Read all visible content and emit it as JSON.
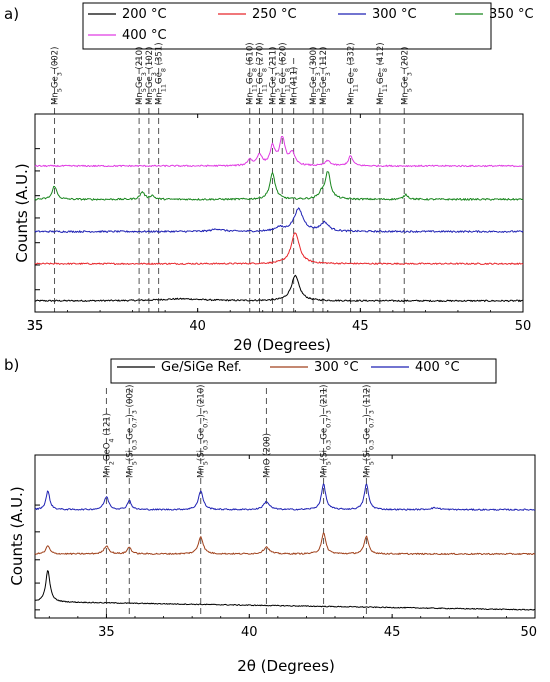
{
  "chart_data": [
    {
      "panel": "a)",
      "type": "line",
      "xlabel": "2θ (Degrees)",
      "ylabel": "Counts (A.U.)",
      "xlim": [
        35,
        50
      ],
      "xticks": [
        35,
        40,
        45,
        50
      ],
      "ylim": [
        0,
        10
      ],
      "legend": "top",
      "series": [
        {
          "name": "200 °C",
          "color": "#000000",
          "baseline": 0.45,
          "noise": 0.03,
          "peaks": [
            [
              43.0,
              1.0,
              0.15
            ],
            [
              39.5,
              0.08,
              0.8
            ]
          ]
        },
        {
          "name": "250 °C",
          "color": "#e8262b",
          "baseline": 1.95,
          "noise": 0.03,
          "peaks": [
            [
              43.0,
              1.25,
              0.15
            ]
          ]
        },
        {
          "name": "300 °C",
          "color": "#1f22b4",
          "baseline": 3.25,
          "noise": 0.035,
          "peaks": [
            [
              43.1,
              0.9,
              0.17
            ],
            [
              43.9,
              0.35,
              0.15
            ],
            [
              42.5,
              0.15,
              0.15
            ],
            [
              40.6,
              0.1,
              0.2
            ]
          ]
        },
        {
          "name": "350 °C",
          "color": "#19861e",
          "baseline": 4.55,
          "noise": 0.035,
          "peaks": [
            [
              35.6,
              0.55,
              0.08
            ],
            [
              38.3,
              0.3,
              0.08
            ],
            [
              38.6,
              0.15,
              0.08
            ],
            [
              42.3,
              1.05,
              0.1
            ],
            [
              43.8,
              0.2,
              0.1
            ],
            [
              44.0,
              1.1,
              0.1
            ],
            [
              46.4,
              0.2,
              0.08
            ]
          ]
        },
        {
          "name": "400 °C",
          "color": "#e03ce3",
          "baseline": 5.9,
          "noise": 0.03,
          "peaks": [
            [
              41.6,
              0.25,
              0.08
            ],
            [
              41.9,
              0.45,
              0.09
            ],
            [
              42.3,
              0.75,
              0.09
            ],
            [
              42.6,
              1.1,
              0.1
            ],
            [
              42.9,
              0.5,
              0.1
            ],
            [
              44.0,
              0.2,
              0.1
            ],
            [
              44.7,
              0.4,
              0.08
            ]
          ]
        }
      ],
      "reference_lines": [
        {
          "x": 35.6,
          "label": "Mn5Ge3 (002)"
        },
        {
          "x": 38.2,
          "label": "Mn5Ge3 (210)"
        },
        {
          "x": 38.5,
          "label": "Mn5Ge3 (102)"
        },
        {
          "x": 38.8,
          "label": "Mn11Ge8 (351)"
        },
        {
          "x": 41.6,
          "label": "Mn11Ge8 (610)"
        },
        {
          "x": 41.9,
          "label": "Mn11Ge8 (270)"
        },
        {
          "x": 42.3,
          "label": "Mn5Ge3 (211)"
        },
        {
          "x": 42.6,
          "label": "Mn11Ge8 (620)"
        },
        {
          "x": 42.95,
          "label": "Mn (411)"
        },
        {
          "x": 43.55,
          "label": "Mn5Ge3 (300)"
        },
        {
          "x": 43.85,
          "label": "Mn5Ge3 (112)"
        },
        {
          "x": 44.7,
          "label": "Mn11Ge8 (332)"
        },
        {
          "x": 45.6,
          "label": "Mn11Ge8 (412)"
        },
        {
          "x": 46.35,
          "label": "Mn5Ge3 (202)"
        }
      ]
    },
    {
      "panel": "b)",
      "type": "line",
      "xlabel": "2θ (Degrees)",
      "ylabel": "Counts (A.U.)",
      "xlim": [
        32.5,
        50
      ],
      "xticks": [
        35,
        40,
        45,
        50
      ],
      "ylim": [
        0,
        10
      ],
      "legend": "top",
      "series": [
        {
          "name": "Ge/SiGe Ref.",
          "color": "#000000",
          "baseline": 0.7,
          "slope": -0.35,
          "noise": 0.02,
          "peaks": [
            [
              32.95,
              1.35,
              0.09
            ]
          ]
        },
        {
          "name": "300 °C",
          "color": "#a0421c",
          "baseline": 2.75,
          "noise": 0.03,
          "peaks": [
            [
              32.95,
              0.35,
              0.08
            ],
            [
              35.0,
              0.35,
              0.1
            ],
            [
              35.8,
              0.3,
              0.08
            ],
            [
              38.3,
              0.75,
              0.1
            ],
            [
              40.6,
              0.3,
              0.12
            ],
            [
              42.6,
              0.9,
              0.09
            ],
            [
              44.1,
              0.75,
              0.09
            ]
          ]
        },
        {
          "name": "400 °C",
          "color": "#1f22b4",
          "baseline": 4.65,
          "noise": 0.03,
          "peaks": [
            [
              32.95,
              0.8,
              0.08
            ],
            [
              35.0,
              0.55,
              0.1
            ],
            [
              35.8,
              0.4,
              0.08
            ],
            [
              38.3,
              0.8,
              0.1
            ],
            [
              40.6,
              0.35,
              0.12
            ],
            [
              42.6,
              1.1,
              0.09
            ],
            [
              44.1,
              1.1,
              0.09
            ],
            [
              46.5,
              0.08,
              0.2
            ]
          ]
        }
      ],
      "reference_lines": [
        {
          "x": 35.0,
          "label": "Mn2GeO4 (121)"
        },
        {
          "x": 35.8,
          "label": "Mn5(Si0.3Ge0.7)3 (002)"
        },
        {
          "x": 38.3,
          "label": "Mn5(Si0.3Ge0.7)3 (210)"
        },
        {
          "x": 40.6,
          "label": "MnO (200)"
        },
        {
          "x": 42.6,
          "label": "Mn5(Si0.3Ge0.7)3 (211)"
        },
        {
          "x": 44.1,
          "label": "Mn5(Si0.3Ge0.7)3 (112)"
        }
      ]
    }
  ]
}
